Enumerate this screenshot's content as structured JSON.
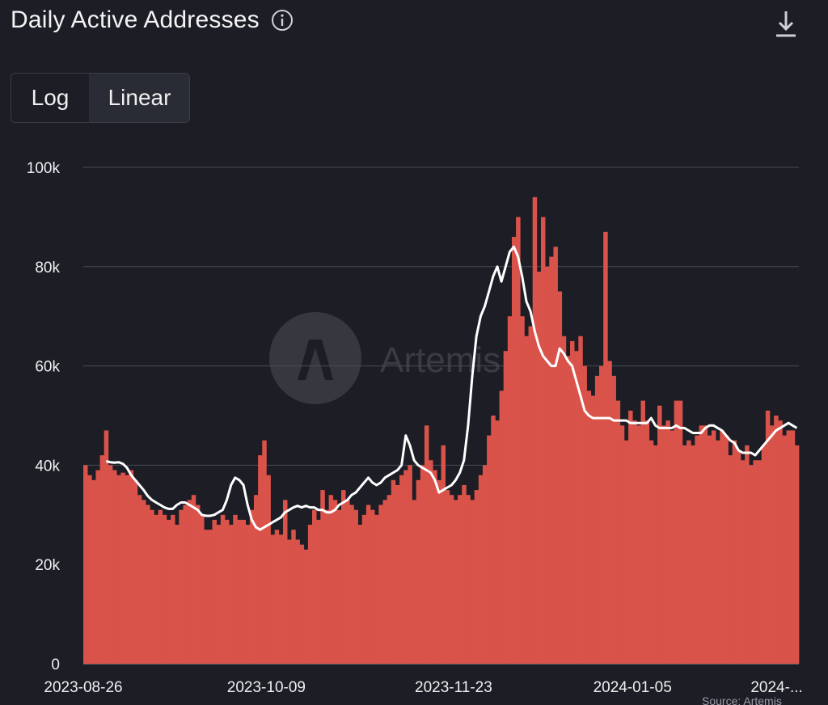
{
  "header": {
    "title": "Daily Active Addresses",
    "info_icon": "info-icon",
    "download_icon": "download-icon"
  },
  "scale_toggle": {
    "options": [
      "Log",
      "Linear"
    ],
    "selected": "Linear"
  },
  "watermark": {
    "logo": "artemis-logo",
    "text": "Artemis"
  },
  "source": "Source: Artemis",
  "colors": {
    "background": "#1c1d25",
    "bar": "#d9534a",
    "line": "#ffffff",
    "grid": "#4a4c55"
  },
  "chart_data": {
    "type": "bar",
    "title": "Daily Active Addresses",
    "ylim": [
      0,
      100000
    ],
    "y_ticks": [
      0,
      20000,
      40000,
      60000,
      80000,
      100000
    ],
    "y_tick_labels": [
      "0",
      "20k",
      "40k",
      "60k",
      "80k",
      "100k"
    ],
    "x_tick_labels": [
      "2023-08-26",
      "2023-10-09",
      "2023-11-23",
      "2024-01-05",
      "2024-..."
    ],
    "x_tick_index": [
      0,
      44,
      89,
      132,
      176
    ],
    "grid": true,
    "series": [
      {
        "type": "bar",
        "values": [
          40000,
          38000,
          37000,
          39000,
          42000,
          47000,
          40000,
          39000,
          38000,
          38500,
          38000,
          39000,
          37000,
          34000,
          33000,
          32000,
          31000,
          30000,
          31000,
          30000,
          29000,
          30000,
          28000,
          31000,
          32000,
          33000,
          34000,
          32000,
          30000,
          27000,
          27000,
          29000,
          28000,
          30000,
          29000,
          28000,
          30000,
          29000,
          29000,
          28000,
          31000,
          34000,
          42000,
          45000,
          38000,
          26000,
          27000,
          26000,
          33000,
          25000,
          27000,
          25000,
          24000,
          23000,
          28000,
          31000,
          29000,
          35000,
          31000,
          34000,
          33000,
          31000,
          35000,
          33000,
          32000,
          31000,
          28000,
          30000,
          32000,
          31000,
          30000,
          32000,
          33000,
          34000,
          37000,
          36000,
          38000,
          39000,
          40000,
          33000,
          37000,
          40000,
          48000,
          41000,
          39000,
          37000,
          44000,
          35000,
          34000,
          33000,
          34000,
          36000,
          34000,
          33000,
          35000,
          38000,
          40000,
          46000,
          50000,
          49000,
          55000,
          63000,
          70000,
          86000,
          90000,
          70000,
          66000,
          68000,
          94000,
          79000,
          90000,
          80000,
          82000,
          84000,
          75000,
          66000,
          62000,
          65000,
          63000,
          66000,
          60000,
          55000,
          54000,
          58000,
          60000,
          87000,
          61000,
          58000,
          53000,
          48000,
          45000,
          51000,
          49000,
          48000,
          53000,
          49000,
          45000,
          44000,
          52000,
          48000,
          49000,
          47000,
          53000,
          53000,
          44000,
          45000,
          44000,
          46000,
          48000,
          48000,
          46000,
          47000,
          45000,
          47000,
          46000,
          42000,
          45000,
          43000,
          41000,
          44000,
          40000,
          41000,
          41000,
          44000,
          51000,
          48000,
          50000,
          49000,
          46000,
          47000,
          47000,
          44000
        ],
        "color": "#d9534a"
      },
      {
        "type": "line",
        "values": [
          null,
          null,
          null,
          null,
          null,
          40800,
          40600,
          40500,
          40600,
          40300,
          39500,
          38000,
          37000,
          36000,
          35000,
          33800,
          33000,
          32500,
          32000,
          31500,
          31200,
          31200,
          32000,
          32500,
          32500,
          32000,
          31500,
          31000,
          30000,
          29800,
          29800,
          30000,
          30500,
          31000,
          33000,
          36000,
          37500,
          37000,
          36000,
          32000,
          29000,
          27500,
          27000,
          27500,
          28000,
          28500,
          29000,
          29500,
          30500,
          31000,
          31500,
          31800,
          31500,
          31800,
          31500,
          31500,
          31000,
          31000,
          30500,
          30500,
          31000,
          32000,
          32500,
          33000,
          34000,
          34500,
          35500,
          36500,
          37500,
          36500,
          36000,
          36500,
          37500,
          38000,
          38500,
          39000,
          40000,
          46000,
          44000,
          41000,
          40000,
          39500,
          39000,
          38500,
          37000,
          34500,
          35000,
          35500,
          36000,
          37000,
          38500,
          41000,
          48000,
          58000,
          66000,
          70000,
          72000,
          75000,
          78000,
          80000,
          77000,
          80000,
          83000,
          84000,
          82000,
          78000,
          73000,
          71000,
          67000,
          64000,
          62000,
          61000,
          60000,
          60000,
          63500,
          62500,
          61000,
          60000,
          57000,
          54000,
          51000,
          50000,
          49500,
          49500,
          49500,
          49500,
          49500,
          49000,
          49000,
          49000,
          49000,
          48500,
          48500,
          48500,
          48500,
          48500,
          49500,
          48000,
          47500,
          47500,
          47500,
          47500,
          48000,
          47500,
          47500,
          47000,
          46500,
          46500,
          46500,
          47500,
          48000,
          48000,
          47500,
          47000,
          46000,
          45000,
          44500,
          43000,
          42500,
          42500,
          42500,
          42000,
          43000,
          44000,
          45000,
          46000,
          47000,
          47500,
          48000,
          48500,
          48000,
          47500
        ],
        "color": "#ffffff"
      }
    ]
  }
}
